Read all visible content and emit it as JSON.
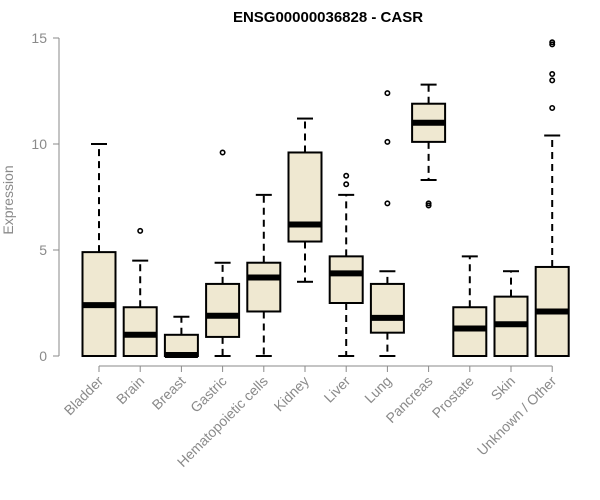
{
  "chart_data": {
    "type": "boxplot",
    "title": "ENSG00000036828 - CASR",
    "xlabel": "",
    "ylabel": "Expression",
    "ylim": [
      0,
      15
    ],
    "yticks": [
      0,
      5,
      10,
      15
    ],
    "box_fill": "#efe8d1",
    "box_stroke": "#000000",
    "axis_color": "#8a8a8a",
    "categories": [
      "Bladder",
      "Brain",
      "Breast",
      "Gastric",
      "Hematopoietic cells",
      "Kidney",
      "Liver",
      "Lung",
      "Pancreas",
      "Prostate",
      "Skin",
      "Unknown / Other"
    ],
    "boxes": [
      {
        "label": "Bladder",
        "whisker_low": 0,
        "q1": 0,
        "median": 2.4,
        "q3": 4.9,
        "whisker_high": 10.0,
        "outliers": []
      },
      {
        "label": "Brain",
        "whisker_low": 0,
        "q1": 0,
        "median": 1.0,
        "q3": 2.3,
        "whisker_high": 4.5,
        "outliers": [
          5.9
        ]
      },
      {
        "label": "Breast",
        "whisker_low": 0,
        "q1": 0,
        "median": 0.05,
        "q3": 1.0,
        "whisker_high": 1.85,
        "outliers": []
      },
      {
        "label": "Gastric",
        "whisker_low": 0,
        "q1": 0.9,
        "median": 1.9,
        "q3": 3.4,
        "whisker_high": 4.4,
        "outliers": [
          9.6
        ]
      },
      {
        "label": "Hematopoietic cells",
        "whisker_low": 0,
        "q1": 2.1,
        "median": 3.7,
        "q3": 4.4,
        "whisker_high": 7.6,
        "outliers": []
      },
      {
        "label": "Kidney",
        "whisker_low": 3.5,
        "q1": 5.4,
        "median": 6.2,
        "q3": 9.6,
        "whisker_high": 11.2,
        "outliers": []
      },
      {
        "label": "Liver",
        "whisker_low": 0,
        "q1": 2.5,
        "median": 3.9,
        "q3": 4.7,
        "whisker_high": 7.6,
        "outliers": [
          8.1,
          8.5
        ]
      },
      {
        "label": "Lung",
        "whisker_low": 0,
        "q1": 1.1,
        "median": 1.8,
        "q3": 3.4,
        "whisker_high": 4.0,
        "outliers": [
          7.2,
          10.1,
          12.4
        ]
      },
      {
        "label": "Pancreas",
        "whisker_low": 8.3,
        "q1": 10.1,
        "median": 11.0,
        "q3": 11.9,
        "whisker_high": 12.8,
        "outliers": [
          7.1,
          7.2
        ]
      },
      {
        "label": "Prostate",
        "whisker_low": 0,
        "q1": 0,
        "median": 1.3,
        "q3": 2.3,
        "whisker_high": 4.7,
        "outliers": []
      },
      {
        "label": "Skin",
        "whisker_low": 0,
        "q1": 0,
        "median": 1.5,
        "q3": 2.8,
        "whisker_high": 4.0,
        "outliers": []
      },
      {
        "label": "Unknown / Other",
        "whisker_low": 0,
        "q1": 0,
        "median": 2.1,
        "q3": 4.2,
        "whisker_high": 10.4,
        "outliers": [
          11.7,
          13.0,
          13.3,
          14.7,
          14.8
        ]
      }
    ]
  }
}
